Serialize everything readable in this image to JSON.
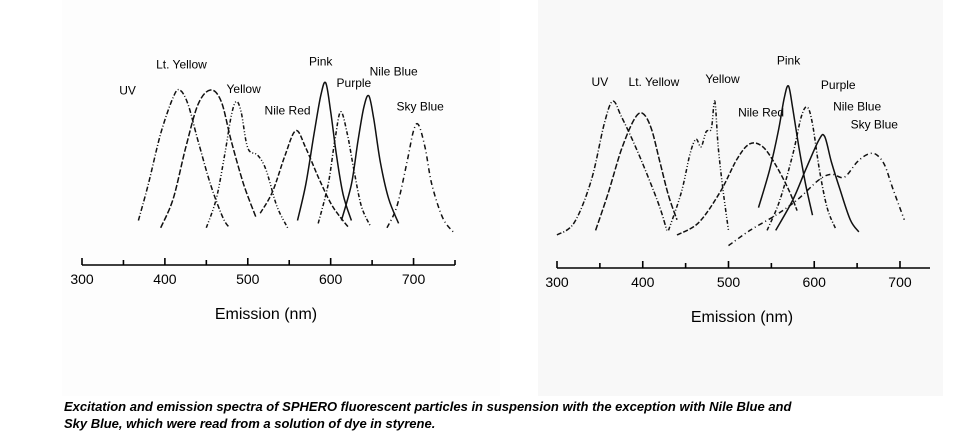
{
  "chart_data": [
    {
      "type": "line",
      "title": "",
      "xlabel": "Emission (nm)",
      "ylabel": "",
      "xlim": [
        300,
        750
      ],
      "xticks": [
        "300",
        "400",
        "500",
        "600",
        "700"
      ],
      "xtick_values": [
        300,
        400,
        500,
        600,
        700
      ],
      "grid": false,
      "series": [
        {
          "name": "UV",
          "label_at": [
            355,
            0.97
          ],
          "points": [
            [
              368,
              0.1
            ],
            [
              380,
              0.35
            ],
            [
              395,
              0.7
            ],
            [
              410,
              0.95
            ],
            [
              418,
              1.0
            ],
            [
              428,
              0.9
            ],
            [
              440,
              0.65
            ],
            [
              455,
              0.35
            ],
            [
              470,
              0.12
            ],
            [
              478,
              0.05
            ]
          ]
        },
        {
          "name": "Lt. Yellow",
          "label_at": [
            420,
            1.15
          ],
          "points": [
            [
              395,
              0.05
            ],
            [
              410,
              0.25
            ],
            [
              425,
              0.6
            ],
            [
              440,
              0.9
            ],
            [
              455,
              1.0
            ],
            [
              468,
              0.92
            ],
            [
              480,
              0.65
            ],
            [
              495,
              0.35
            ],
            [
              510,
              0.12
            ]
          ]
        },
        {
          "name": "Yellow",
          "label_at": [
            495,
            0.98
          ],
          "points": [
            [
              450,
              0.05
            ],
            [
              462,
              0.25
            ],
            [
              472,
              0.55
            ],
            [
              480,
              0.82
            ],
            [
              486,
              0.92
            ],
            [
              492,
              0.85
            ],
            [
              500,
              0.6
            ],
            [
              512,
              0.55
            ],
            [
              522,
              0.45
            ],
            [
              535,
              0.2
            ],
            [
              548,
              0.05
            ]
          ]
        },
        {
          "name": "Nile Red",
          "label_at": [
            548,
            0.83
          ],
          "points": [
            [
              515,
              0.15
            ],
            [
              530,
              0.3
            ],
            [
              545,
              0.55
            ],
            [
              558,
              0.72
            ],
            [
              570,
              0.6
            ],
            [
              585,
              0.4
            ],
            [
              600,
              0.22
            ],
            [
              612,
              0.12
            ],
            [
              622,
              0.05
            ]
          ]
        },
        {
          "name": "Pink",
          "label_at": [
            588,
            1.17
          ],
          "points": [
            [
              560,
              0.1
            ],
            [
              570,
              0.35
            ],
            [
              580,
              0.7
            ],
            [
              588,
              0.96
            ],
            [
              594,
              1.05
            ],
            [
              600,
              0.85
            ],
            [
              607,
              0.55
            ],
            [
              615,
              0.28
            ],
            [
              625,
              0.1
            ]
          ]
        },
        {
          "name": "Purple",
          "label_at": [
            628,
            1.02
          ],
          "points": [
            [
              585,
              0.08
            ],
            [
              597,
              0.35
            ],
            [
              605,
              0.65
            ],
            [
              612,
              0.85
            ],
            [
              620,
              0.7
            ],
            [
              628,
              0.45
            ],
            [
              637,
              0.2
            ],
            [
              648,
              0.06
            ]
          ]
        },
        {
          "name": "Nile Blue",
          "label_at": [
            676,
            1.1
          ],
          "points": [
            [
              613,
              0.1
            ],
            [
              625,
              0.35
            ],
            [
              633,
              0.65
            ],
            [
              640,
              0.88
            ],
            [
              646,
              0.96
            ],
            [
              652,
              0.8
            ],
            [
              660,
              0.5
            ],
            [
              670,
              0.25
            ],
            [
              682,
              0.08
            ]
          ]
        },
        {
          "name": "Sky Blue",
          "label_at": [
            708,
            0.86
          ],
          "points": [
            [
              668,
              0.05
            ],
            [
              680,
              0.2
            ],
            [
              692,
              0.5
            ],
            [
              700,
              0.72
            ],
            [
              706,
              0.76
            ],
            [
              714,
              0.6
            ],
            [
              722,
              0.35
            ],
            [
              735,
              0.12
            ],
            [
              748,
              0.02
            ]
          ]
        }
      ]
    },
    {
      "type": "line",
      "title": "",
      "xlabel": "Emission (nm)",
      "ylabel": "",
      "xlim": [
        300,
        735
      ],
      "xticks": [
        "300",
        "400",
        "500",
        "600",
        "700"
      ],
      "xtick_values": [
        300,
        400,
        500,
        600,
        700
      ],
      "grid": false,
      "series": [
        {
          "name": "UV",
          "label_at": [
            350,
            1.0
          ],
          "points": [
            [
              300,
              0.02
            ],
            [
              320,
              0.1
            ],
            [
              340,
              0.38
            ],
            [
              355,
              0.75
            ],
            [
              365,
              0.9
            ],
            [
              375,
              0.8
            ],
            [
              390,
              0.62
            ],
            [
              405,
              0.42
            ],
            [
              420,
              0.2
            ],
            [
              428,
              0.05
            ]
          ]
        },
        {
          "name": "Lt. Yellow",
          "label_at": [
            413,
            1.0
          ],
          "points": [
            [
              345,
              0.05
            ],
            [
              360,
              0.3
            ],
            [
              375,
              0.58
            ],
            [
              390,
              0.78
            ],
            [
              400,
              0.82
            ],
            [
              410,
              0.72
            ],
            [
              420,
              0.5
            ],
            [
              430,
              0.28
            ],
            [
              440,
              0.12
            ]
          ]
        },
        {
          "name": "Yellow",
          "label_at": [
            493,
            1.02
          ],
          "points": [
            [
              430,
              0.05
            ],
            [
              445,
              0.3
            ],
            [
              455,
              0.55
            ],
            [
              462,
              0.65
            ],
            [
              468,
              0.6
            ],
            [
              474,
              0.7
            ],
            [
              480,
              0.72
            ],
            [
              484,
              0.9
            ],
            [
              488,
              0.6
            ],
            [
              494,
              0.3
            ],
            [
              500,
              0.05
            ]
          ]
        },
        {
          "name": "Nile Red",
          "label_at": [
            538,
            0.8
          ],
          "points": [
            [
              440,
              0.02
            ],
            [
              465,
              0.1
            ],
            [
              490,
              0.3
            ],
            [
              510,
              0.52
            ],
            [
              525,
              0.62
            ],
            [
              540,
              0.6
            ],
            [
              555,
              0.48
            ],
            [
              570,
              0.32
            ],
            [
              580,
              0.18
            ]
          ]
        },
        {
          "name": "Pink",
          "label_at": [
            570,
            1.14
          ],
          "points": [
            [
              535,
              0.2
            ],
            [
              548,
              0.45
            ],
            [
              558,
              0.7
            ],
            [
              565,
              0.92
            ],
            [
              570,
              1.0
            ],
            [
              575,
              0.85
            ],
            [
              582,
              0.6
            ],
            [
              590,
              0.35
            ],
            [
              598,
              0.15
            ]
          ]
        },
        {
          "name": "Purple",
          "label_at": [
            628,
            0.98
          ],
          "points": [
            [
              545,
              0.05
            ],
            [
              560,
              0.25
            ],
            [
              575,
              0.55
            ],
            [
              585,
              0.8
            ],
            [
              592,
              0.86
            ],
            [
              598,
              0.75
            ],
            [
              606,
              0.45
            ],
            [
              615,
              0.2
            ],
            [
              625,
              0.06
            ]
          ]
        },
        {
          "name": "Nile Blue",
          "label_at": [
            650,
            0.84
          ],
          "points": [
            [
              555,
              0.05
            ],
            [
              575,
              0.25
            ],
            [
              590,
              0.45
            ],
            [
              605,
              0.64
            ],
            [
              612,
              0.67
            ],
            [
              620,
              0.5
            ],
            [
              630,
              0.32
            ],
            [
              642,
              0.12
            ],
            [
              652,
              0.04
            ]
          ]
        },
        {
          "name": "Sky Blue",
          "label_at": [
            670,
            0.72
          ],
          "points": [
            [
              500,
              -0.05
            ],
            [
              525,
              0.05
            ],
            [
              555,
              0.15
            ],
            [
              580,
              0.25
            ],
            [
              605,
              0.38
            ],
            [
              620,
              0.42
            ],
            [
              635,
              0.4
            ],
            [
              650,
              0.5
            ],
            [
              662,
              0.55
            ],
            [
              672,
              0.55
            ],
            [
              682,
              0.48
            ],
            [
              692,
              0.32
            ],
            [
              705,
              0.12
            ]
          ]
        }
      ]
    }
  ],
  "caption": {
    "line1": "Excitation and emission spectra of SPHERO fluorescent particles in suspension with the exception with Nile Blue and",
    "line2": "Sky Blue, which were read from a solution of dye in styrene."
  }
}
